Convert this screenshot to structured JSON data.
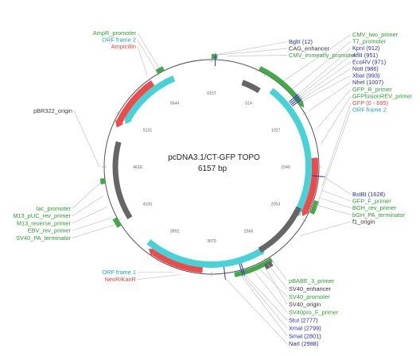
{
  "plasmid": {
    "name": "pcDNA3.1/CT-GFP TOPO",
    "size": "6157 bp"
  },
  "colors": {
    "promoter": "#2f9b35",
    "orf": "#1aa7a9",
    "gene": "#e34545",
    "origin": "#3c3c3c",
    "site": "#2b2f9e",
    "label_default": "#333333",
    "backbone": "#555555",
    "orf_fill": "#46d2d7",
    "gene_fill": "#ef4a4a",
    "promoter_fill": "#42a84a",
    "origin_fill": "#666666",
    "site_fill": "#2f2fb0"
  },
  "ticks": [
    "6157",
    "514",
    "1027",
    "1540",
    "2053",
    "2566",
    "3079",
    "3592",
    "4105",
    "4618",
    "5131",
    "5644"
  ],
  "labels_top_left": [
    {
      "text": "AmpR_promoter",
      "kind": "promoter"
    },
    {
      "text": "ORF frame 2",
      "kind": "orf"
    },
    {
      "text": "Ampicillin",
      "kind": "gene"
    }
  ],
  "labels_left_origin": [
    {
      "text": "pBR322_origin",
      "kind": "origin"
    }
  ],
  "labels_left": [
    {
      "text": "lac_promoter",
      "kind": "promoter"
    },
    {
      "text": "M13_pUC_rev_primer",
      "kind": "promoter"
    },
    {
      "text": "M13_reverse_primer",
      "kind": "promoter"
    },
    {
      "text": "EBV_rev_primer",
      "kind": "promoter"
    },
    {
      "text": "SV40_PA_terminator",
      "kind": "promoter"
    }
  ],
  "labels_bottom_left": [
    {
      "text": "ORF frame 1",
      "kind": "orf"
    },
    {
      "text": "NeoR/KanR",
      "kind": "gene"
    }
  ],
  "labels_top_mid": [
    {
      "text": "BglII (12)",
      "kind": "site"
    },
    {
      "text": "CAG_enhancer",
      "kind": "default"
    },
    {
      "text": "CMV_immearly_promoter",
      "kind": "promoter"
    }
  ],
  "labels_right_top": [
    {
      "text": "CMV_two_primer",
      "kind": "promoter"
    },
    {
      "text": "T7_promoter",
      "kind": "promoter"
    },
    {
      "text": "KpnI (912)",
      "kind": "site"
    },
    {
      "text": "AflII (951)",
      "kind": "site"
    },
    {
      "text": "EcoRV (971)",
      "kind": "site"
    },
    {
      "text": "NotI (986)",
      "kind": "site"
    },
    {
      "text": "XbaI (993)",
      "kind": "site"
    },
    {
      "text": "NheI (1007)",
      "kind": "site"
    },
    {
      "text": "GFP_R_primer",
      "kind": "promoter"
    },
    {
      "text": "GFPfusionREV_primer",
      "kind": "promoter"
    },
    {
      "text": "GFP (0 - 695)",
      "kind": "gene"
    },
    {
      "text": "ORF frame 2",
      "kind": "orf"
    }
  ],
  "labels_right_mid": [
    {
      "text": "BstBI (1628)",
      "kind": "site"
    },
    {
      "text": "GFP_F_primer",
      "kind": "promoter"
    },
    {
      "text": "BGH_rev_primer",
      "kind": "promoter"
    },
    {
      "text": "bGH_PA_terminator",
      "kind": "promoter"
    },
    {
      "text": "f1_origin",
      "kind": "default"
    }
  ],
  "labels_bottom": [
    {
      "text": "pBABE_3_primer",
      "kind": "promoter"
    },
    {
      "text": "SV40_enhancer",
      "kind": "default"
    },
    {
      "text": "SV40_promoter",
      "kind": "promoter"
    },
    {
      "text": "SV40_origin",
      "kind": "default"
    },
    {
      "text": "SV40pro_F_primer",
      "kind": "promoter"
    },
    {
      "text": "StuI (2777)",
      "kind": "site"
    },
    {
      "text": "XmaI (2799)",
      "kind": "site"
    },
    {
      "text": "SmaI (2801)",
      "kind": "site"
    },
    {
      "text": "NarI (2988)",
      "kind": "site"
    }
  ]
}
